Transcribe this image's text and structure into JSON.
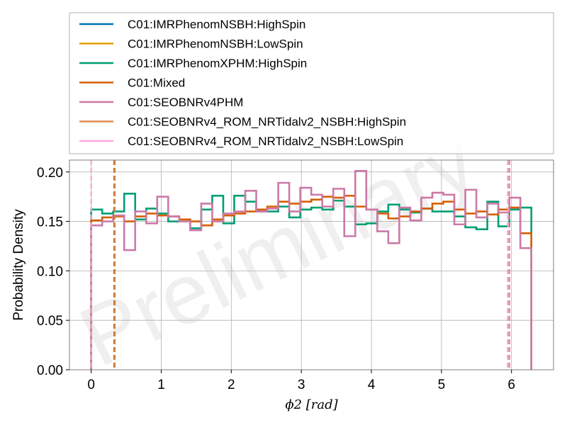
{
  "chart_data": {
    "type": "line",
    "title": "",
    "xlabel": "ϕ2 [rad]",
    "ylabel": "Probability Density",
    "xlim": [
      -0.31,
      6.6
    ],
    "ylim": [
      0.0,
      0.212
    ],
    "xticks": [
      0,
      1,
      2,
      3,
      4,
      5,
      6
    ],
    "xtick_labels": [
      "0",
      "1",
      "2",
      "3",
      "4",
      "5",
      "6"
    ],
    "yticks": [
      0.0,
      0.05,
      0.1,
      0.15,
      0.2
    ],
    "ytick_labels": [
      "0.00",
      "0.05",
      "0.10",
      "0.15",
      "0.20"
    ],
    "grid": true,
    "legend_position": "top (above plot)",
    "watermark": "Preliminary",
    "bins": {
      "start": 0.0,
      "end": 6.2832,
      "count": 40
    },
    "series": [
      {
        "name": "C01:IMRPhenomNSBH:HighSpin",
        "color": "#0072B2",
        "values": [],
        "interval": [
          0.33,
          5.95
        ]
      },
      {
        "name": "C01:IMRPhenomNSBH:LowSpin",
        "color": "#E69F00",
        "values": [],
        "interval": [
          0.33,
          5.95
        ]
      },
      {
        "name": "C01:IMRPhenomXPHM:HighSpin",
        "color": "#009E73",
        "values": [
          0.162,
          0.158,
          0.16,
          0.178,
          0.152,
          0.163,
          0.158,
          0.15,
          0.152,
          0.143,
          0.162,
          0.176,
          0.148,
          0.176,
          0.17,
          0.16,
          0.16,
          0.165,
          0.154,
          0.162,
          0.164,
          0.162,
          0.171,
          0.165,
          0.147,
          0.148,
          0.16,
          0.167,
          0.162,
          0.159,
          0.163,
          0.16,
          0.16,
          0.155,
          0.144,
          0.142,
          0.17,
          0.145,
          0.162,
          0.164
        ],
        "interval": [
          0.33,
          5.95
        ]
      },
      {
        "name": "C01:Mixed",
        "color": "#D55E00",
        "values": [
          0.151,
          0.154,
          0.155,
          0.15,
          0.155,
          0.158,
          0.156,
          0.155,
          0.152,
          0.15,
          0.146,
          0.152,
          0.156,
          0.158,
          0.16,
          0.162,
          0.165,
          0.17,
          0.168,
          0.17,
          0.172,
          0.175,
          0.174,
          0.176,
          0.165,
          0.162,
          0.158,
          0.153,
          0.155,
          0.16,
          0.163,
          0.168,
          0.17,
          0.162,
          0.158,
          0.16,
          0.157,
          0.162,
          0.164,
          0.138
        ],
        "interval": [
          0.33,
          5.95
        ]
      },
      {
        "name": "C01:SEOBNRv4PHM",
        "color": "#CC79A7",
        "values": [
          0.146,
          0.15,
          0.156,
          0.121,
          0.16,
          0.148,
          0.175,
          0.155,
          0.15,
          0.141,
          0.168,
          0.15,
          0.158,
          0.16,
          0.181,
          0.16,
          0.163,
          0.189,
          0.16,
          0.184,
          0.177,
          0.165,
          0.183,
          0.135,
          0.201,
          0.162,
          0.14,
          0.128,
          0.164,
          0.151,
          0.174,
          0.179,
          0.177,
          0.147,
          0.182,
          0.154,
          0.168,
          0.159,
          0.174,
          0.123
        ],
        "interval": [
          0.0,
          5.97
        ]
      },
      {
        "name": "C01:SEOBNRv4_ROM_NRTidalv2_NSBH:HighSpin",
        "color": "#E08C50",
        "values": [],
        "interval": [
          0.34,
          5.95
        ]
      },
      {
        "name": "C01:SEOBNRv4_ROM_NRTidalv2_NSBH:LowSpin",
        "color": "#FFA8E0",
        "values": [],
        "interval": [
          0.0,
          5.95
        ]
      }
    ]
  }
}
